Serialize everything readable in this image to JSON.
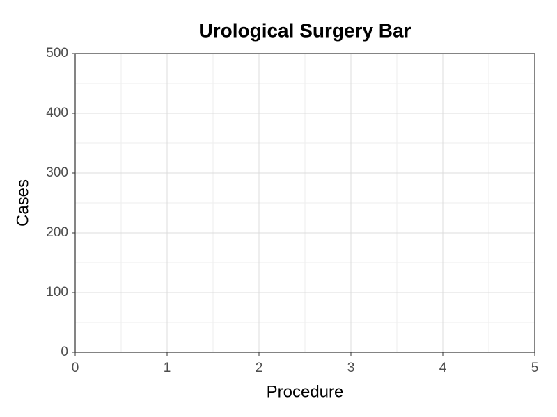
{
  "chart_data": {
    "type": "bar",
    "title": "Urological Surgery Bar",
    "x_label": "Procedure",
    "y_label": "Cases",
    "xlim": [
      0,
      5
    ],
    "xticks": [
      0,
      1,
      2,
      3,
      4,
      5
    ],
    "ylim": [
      0,
      500
    ],
    "yticks": [
      0,
      100,
      200,
      300,
      400,
      500
    ],
    "grid": true,
    "minor_grid": true
  }
}
